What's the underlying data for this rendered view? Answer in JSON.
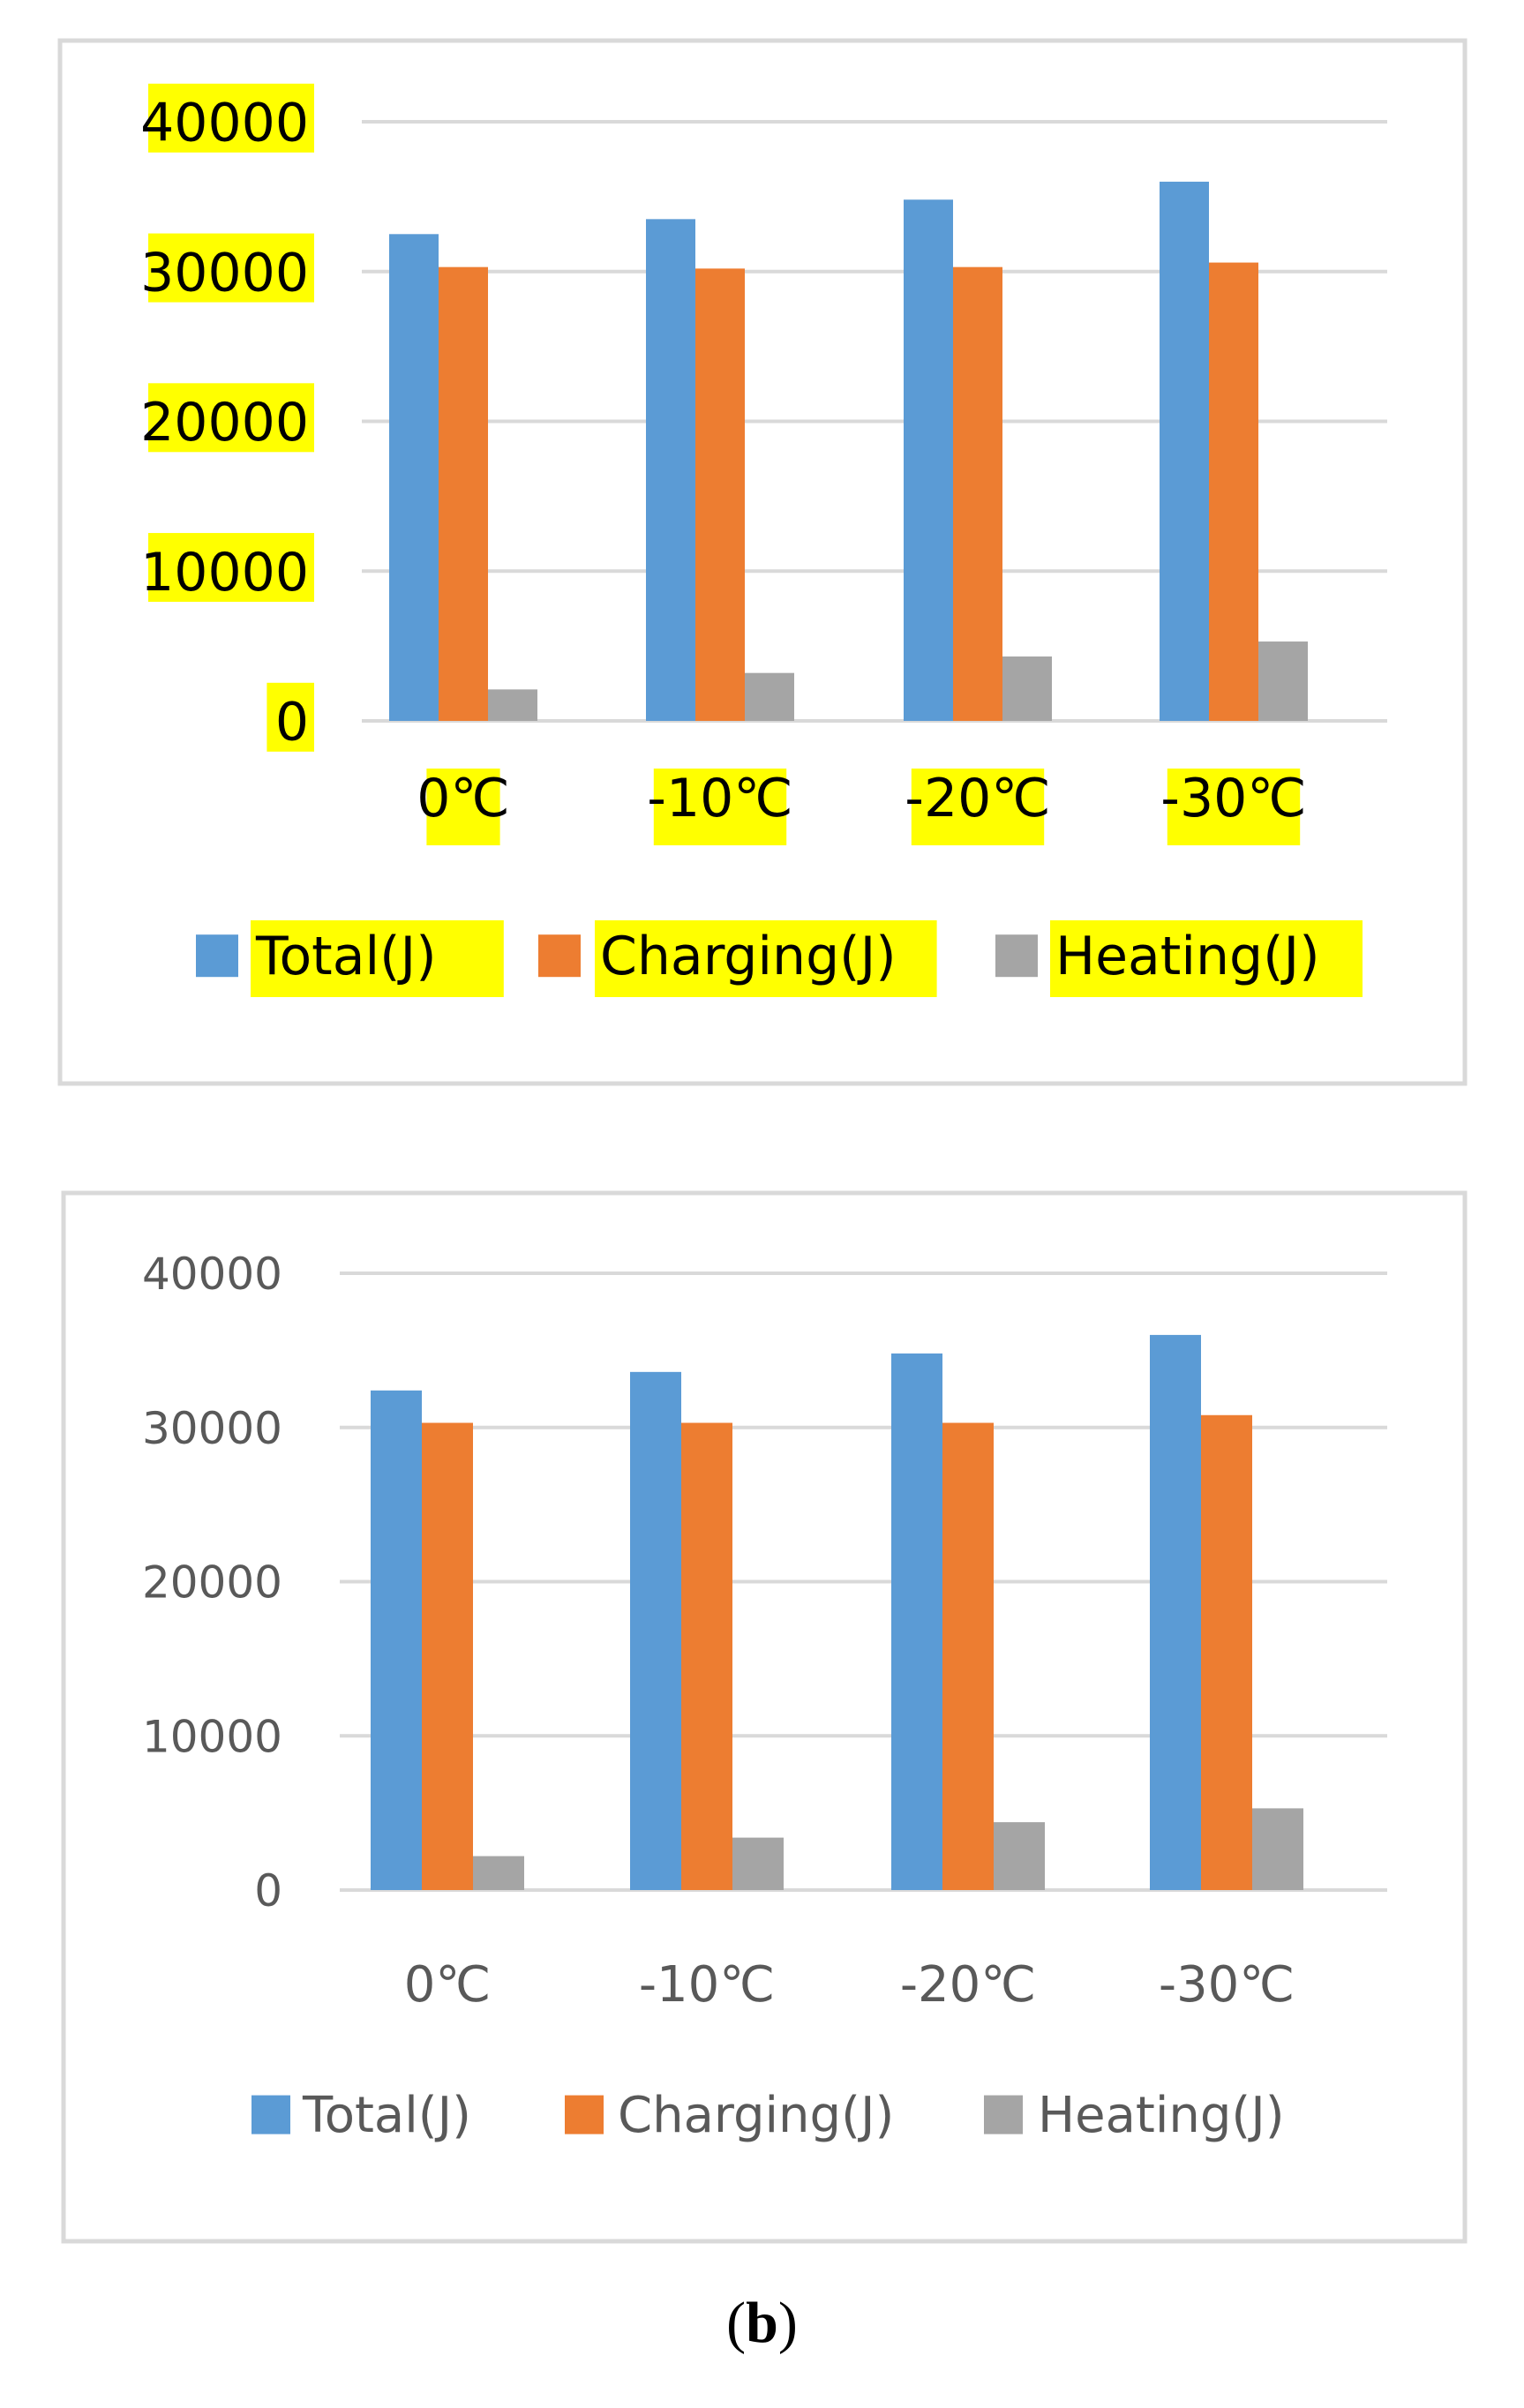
{
  "caption": {
    "open": "(",
    "label": "b",
    "close": ")"
  },
  "colors": {
    "total": "#5B9BD5",
    "charging": "#ED7D31",
    "heating": "#A5A5A5",
    "highlight": "#FFFF00",
    "grid": "#D9D9D9",
    "frame": "#D9D9D9"
  },
  "chart_data": [
    {
      "type": "bar",
      "title": "",
      "xlabel": "",
      "ylabel": "",
      "ylim": [
        0,
        40000
      ],
      "yticks": [
        "0",
        "10000",
        "20000",
        "30000",
        "40000"
      ],
      "categories": [
        "0℃",
        "-10℃",
        "-20℃",
        "-30℃"
      ],
      "legend_position": "bottom",
      "highlighted": true,
      "series": [
        {
          "name": "Total(J)",
          "color": "#5B9BD5",
          "values": [
            32500,
            33500,
            34800,
            36000
          ]
        },
        {
          "name": "Charging(J)",
          "color": "#ED7D31",
          "values": [
            30300,
            30200,
            30300,
            30600
          ]
        },
        {
          "name": "Heating(J)",
          "color": "#A5A5A5",
          "values": [
            2100,
            3200,
            4300,
            5300
          ]
        }
      ]
    },
    {
      "type": "bar",
      "title": "",
      "xlabel": "",
      "ylabel": "",
      "ylim": [
        0,
        40000
      ],
      "yticks": [
        "0",
        "10000",
        "20000",
        "30000",
        "40000"
      ],
      "categories": [
        "0℃",
        "-10℃",
        "-20℃",
        "-30℃"
      ],
      "legend_position": "bottom",
      "highlighted": false,
      "series": [
        {
          "name": "Total(J)",
          "color": "#5B9BD5",
          "values": [
            32400,
            33600,
            34800,
            36000
          ]
        },
        {
          "name": "Charging(J)",
          "color": "#ED7D31",
          "values": [
            30300,
            30300,
            30300,
            30800
          ]
        },
        {
          "name": "Heating(J)",
          "color": "#A5A5A5",
          "values": [
            2200,
            3400,
            4400,
            5300
          ]
        }
      ]
    }
  ]
}
